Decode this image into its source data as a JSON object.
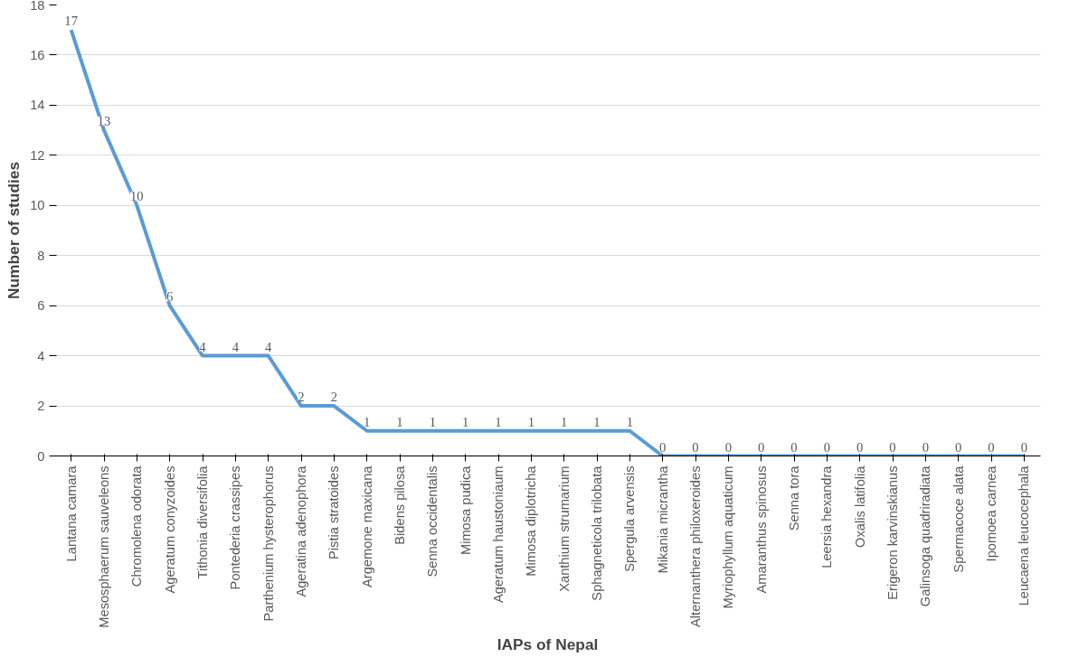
{
  "chart_data": {
    "type": "line",
    "xlabel": "IAPs of Nepal",
    "ylabel": "Number of studies",
    "categories": [
      "Lantana camara",
      "Mesosphaerum sauveleons",
      "Chromolena odorata",
      "Ageratum conyzoides",
      "Tithonia diversifolia",
      "Pontederia crassipes",
      "Parthenium hysterophorus",
      "Ageratina adenophora",
      "Pistia stratoides",
      "Argemone maxicana",
      "Bidens pilosa",
      "Senna occidentalis",
      "Mimosa pudica",
      "Ageratum haustoniaum",
      "Mimosa diplotricha",
      "Xanthium strumarium",
      "Sphagneticola trilobata",
      "Spergula arvensis",
      "Mikania micrantha",
      "Alternanthera philoxeroides",
      "Myriophyllum aquaticum",
      "Amaranthus spinosus",
      "Senna tora",
      "Leersia hexandra",
      "Oxalis latifolia",
      "Erigeron karvinskianus",
      "Galinsoga quadriradiata",
      "Spermacoce alata",
      "Ipomoea carnea",
      "Leucaena leucocephala"
    ],
    "series": [
      {
        "color": "#5b9bd5",
        "values": [
          17,
          13,
          10,
          6,
          4,
          4,
          4,
          2,
          2,
          1,
          1,
          1,
          1,
          1,
          1,
          1,
          1,
          1,
          0,
          0,
          0,
          0,
          0,
          0,
          0,
          0,
          0,
          0,
          0,
          0
        ]
      }
    ],
    "ylim": [
      0,
      18
    ],
    "yticks": [
      0,
      2,
      4,
      6,
      8,
      10,
      12,
      14,
      16,
      18
    ],
    "grid": "y",
    "data_labels": true
  }
}
